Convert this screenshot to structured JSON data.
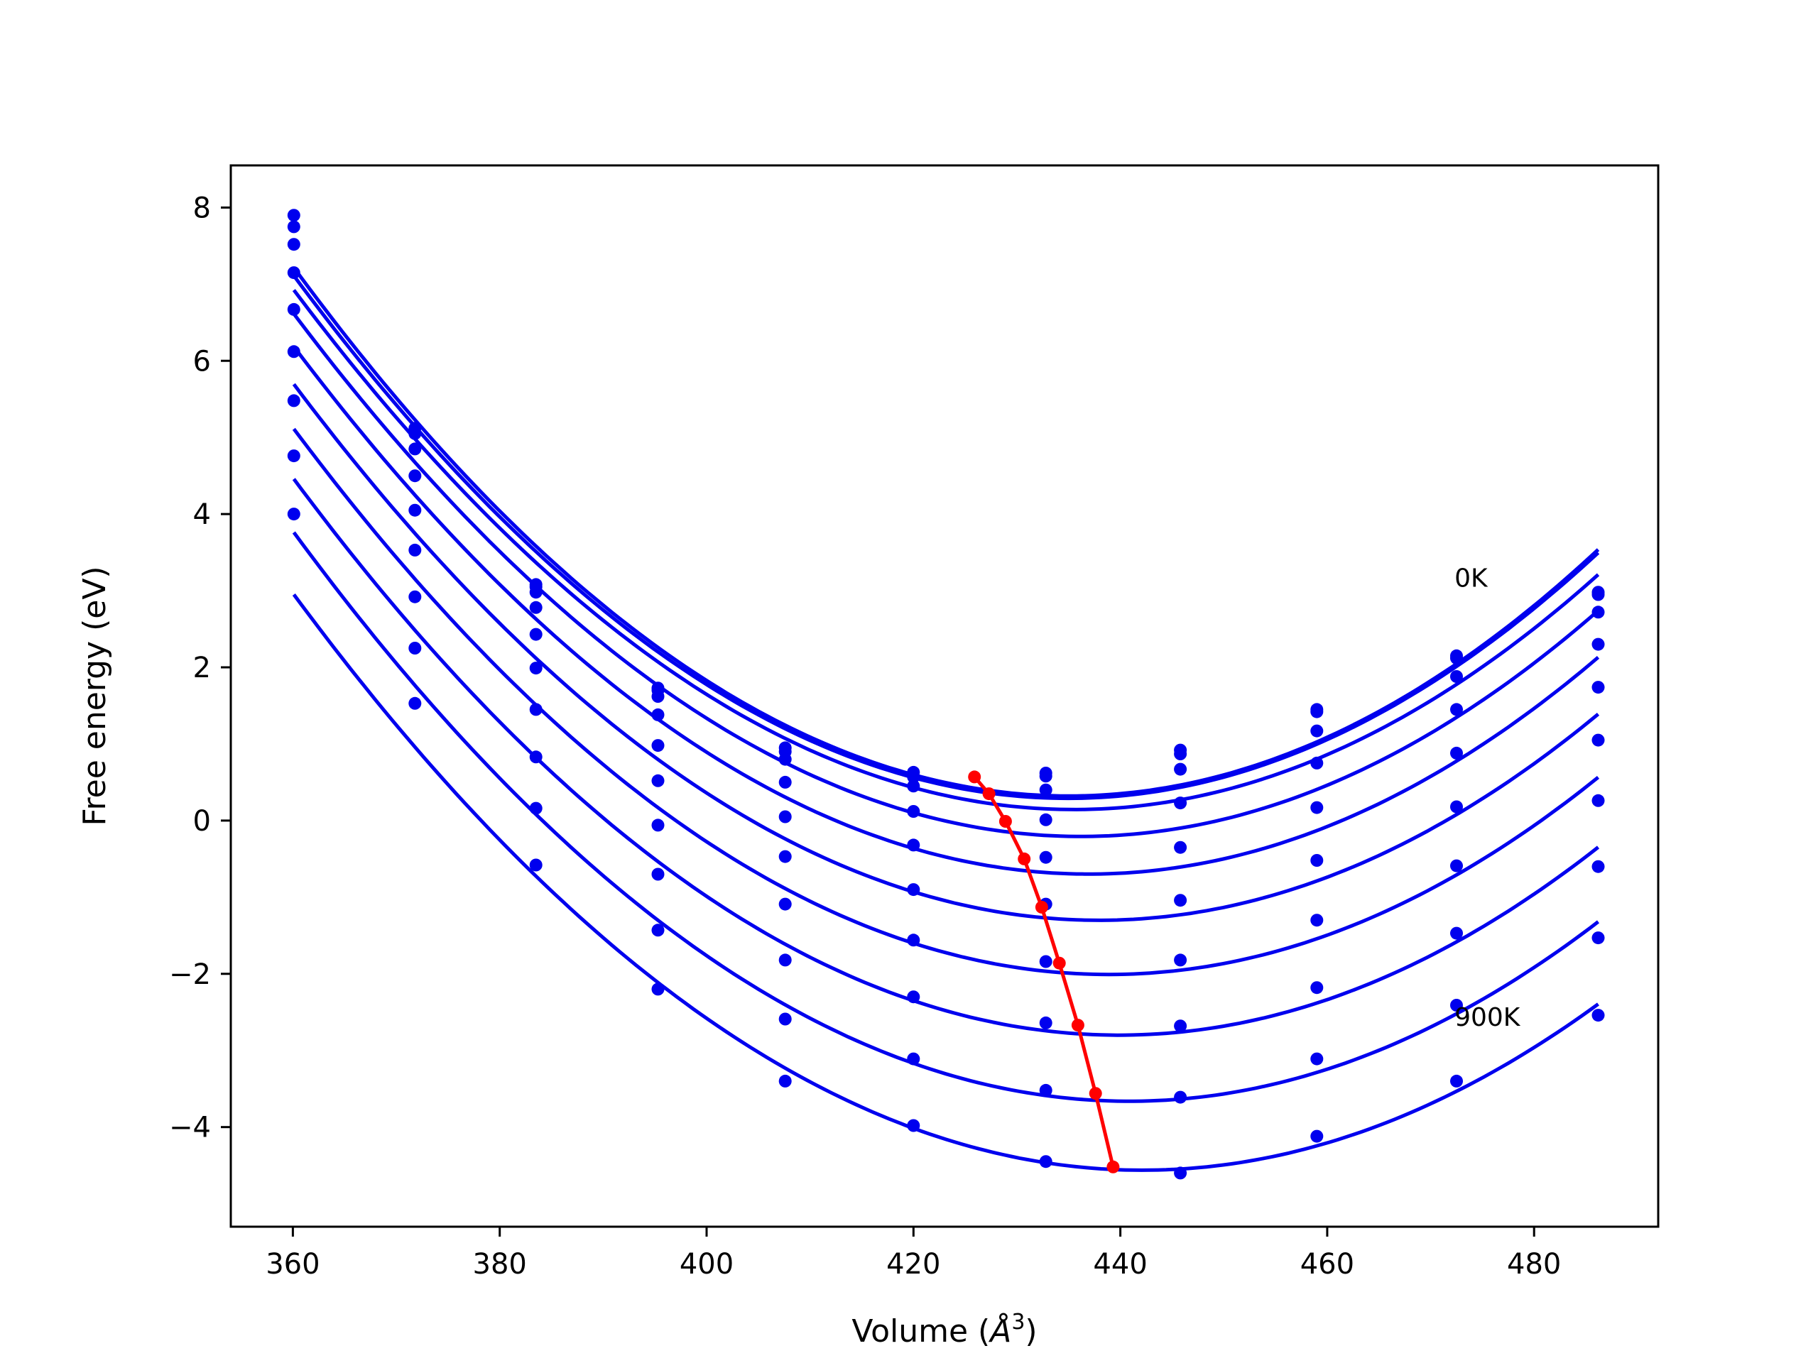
{
  "chart_data": {
    "type": "line",
    "xlabel_parts": {
      "prefix": "Volume (",
      "unit": "Å",
      "exponent": "3",
      "suffix": ")"
    },
    "ylabel": "Free energy (eV)",
    "xlim": [
      354,
      492
    ],
    "ylim": [
      -5.3,
      8.55
    ],
    "xticks": [
      360,
      380,
      400,
      420,
      440,
      460,
      480
    ],
    "xtick_labels": [
      "360",
      "380",
      "400",
      "420",
      "440",
      "460",
      "480"
    ],
    "yticks": [
      -4,
      -2,
      0,
      2,
      4,
      6,
      8
    ],
    "ytick_labels": [
      "−4",
      "−2",
      "0",
      "2",
      "4",
      "6",
      "8"
    ],
    "grid": false,
    "x": [
      360.1,
      371.8,
      383.5,
      395.3,
      407.6,
      420.0,
      432.8,
      445.8,
      459.0,
      472.5,
      486.2
    ],
    "series": [
      {
        "color": "#0000ee",
        "values": [
          7.9,
          5.12,
          3.08,
          1.73,
          0.95,
          0.63,
          0.62,
          0.92,
          1.45,
          2.15,
          2.98
        ]
      },
      {
        "color": "#0000ee",
        "values": [
          7.75,
          5.05,
          3.05,
          1.7,
          0.9,
          0.57,
          0.58,
          0.87,
          1.42,
          2.12,
          2.95
        ]
      },
      {
        "color": "#0000ee",
        "values": [
          7.52,
          4.85,
          2.98,
          1.62,
          0.8,
          0.45,
          0.4,
          0.67,
          1.17,
          1.88,
          2.72
        ]
      },
      {
        "color": "#0000ee",
        "values": [
          7.15,
          4.5,
          2.78,
          1.38,
          0.5,
          0.12,
          0.01,
          0.23,
          0.75,
          1.45,
          2.3
        ]
      },
      {
        "color": "#0000ee",
        "values": [
          6.67,
          4.05,
          2.43,
          0.98,
          0.05,
          -0.32,
          -0.48,
          -0.35,
          0.17,
          0.88,
          1.74
        ]
      },
      {
        "color": "#0000ee",
        "values": [
          6.12,
          3.53,
          1.99,
          0.52,
          -0.47,
          -0.9,
          -1.09,
          -1.04,
          -0.52,
          0.18,
          1.05
        ]
      },
      {
        "color": "#0000ee",
        "values": [
          5.48,
          2.92,
          1.45,
          -0.06,
          -1.09,
          -1.56,
          -1.84,
          -1.82,
          -1.3,
          -0.59,
          0.26
        ]
      },
      {
        "color": "#0000ee",
        "values": [
          4.76,
          2.25,
          0.83,
          -0.7,
          -1.82,
          -2.3,
          -2.64,
          -2.68,
          -2.18,
          -1.47,
          -0.6
        ]
      },
      {
        "color": "#0000ee",
        "values": [
          4.0,
          1.53,
          0.16,
          -1.43,
          -2.59,
          -3.11,
          -3.52,
          -3.61,
          -3.11,
          -2.41,
          -1.53
        ]
      },
      {
        "color": "#0000ee",
        "values": [
          null,
          null,
          -0.58,
          -2.2,
          -3.4,
          -3.98,
          -4.45,
          -4.6,
          -4.12,
          -3.4,
          -2.54
        ]
      }
    ],
    "minima_series": {
      "color": "#ff0000",
      "x": [
        425.9,
        427.3,
        428.9,
        430.7,
        432.4,
        434.1,
        435.9,
        437.6,
        439.3
      ],
      "y": [
        0.57,
        0.35,
        -0.01,
        -0.5,
        -1.13,
        -1.86,
        -2.67,
        -3.56,
        -4.52
      ]
    },
    "annotations": [
      {
        "text": "0K",
        "x": 472.3,
        "y": 3.05
      },
      {
        "text": "900K",
        "x": 472.3,
        "y": -2.68
      }
    ]
  }
}
